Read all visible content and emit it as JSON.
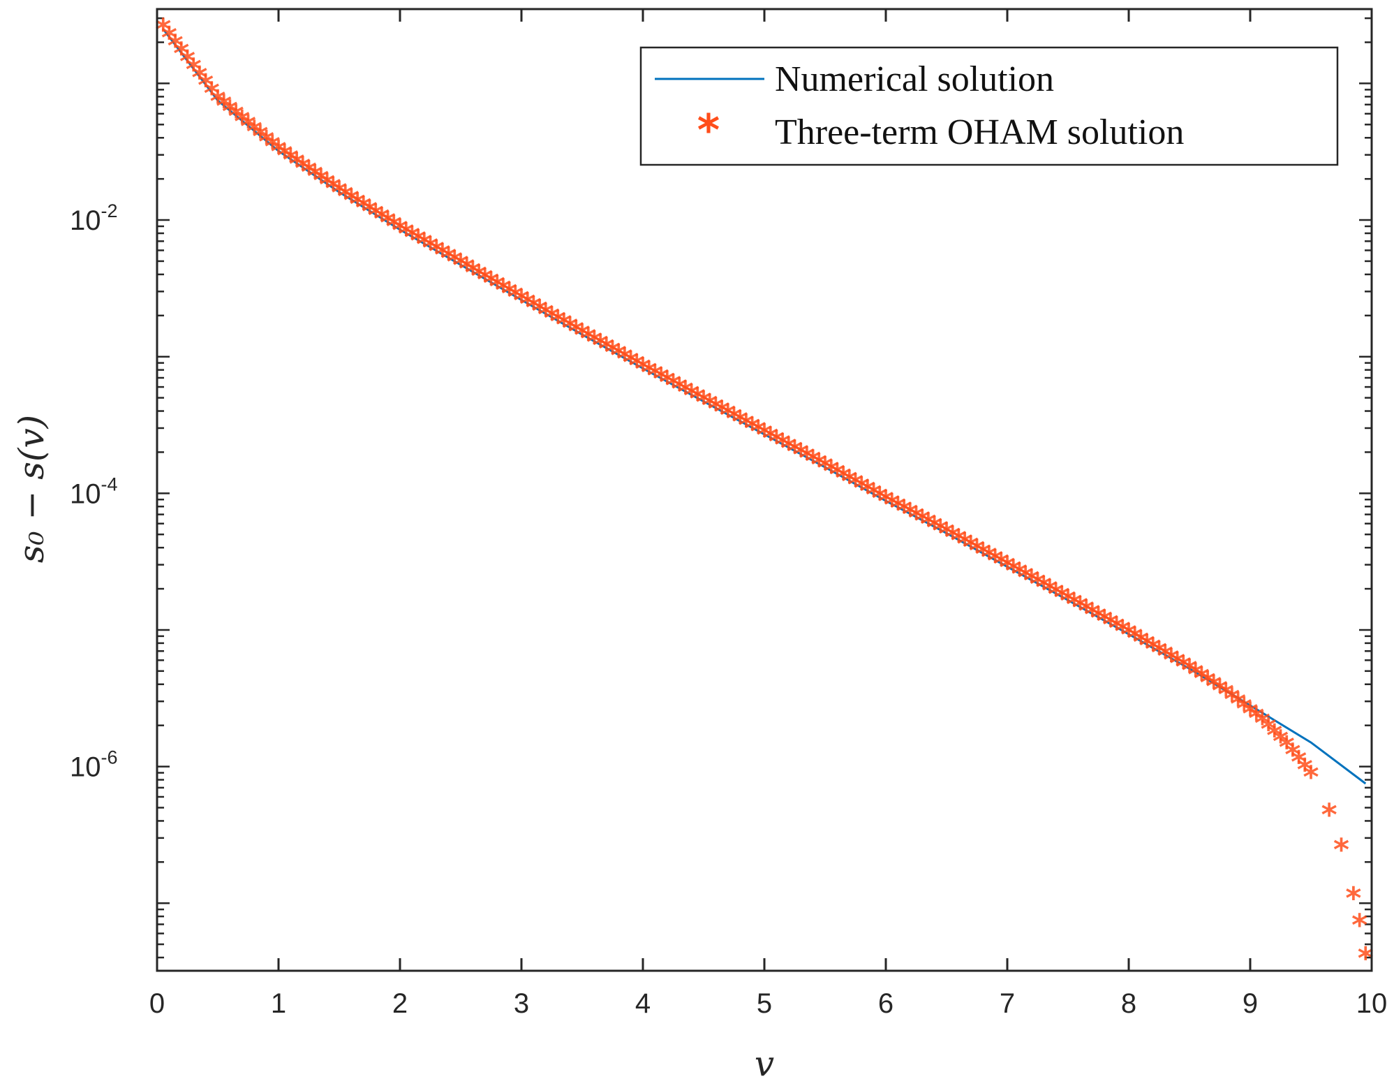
{
  "chart_data": {
    "type": "line",
    "xlabel": "v",
    "ylabel": "s₀ − s(v)",
    "xlim": [
      0,
      10
    ],
    "ylim": [
      3.2e-08,
      0.35
    ],
    "yscale": "log",
    "grid": false,
    "legend_position": "top-right",
    "x_ticks": [
      "0",
      "1",
      "2",
      "3",
      "4",
      "5",
      "6",
      "7",
      "8",
      "9",
      "10"
    ],
    "y_ticks": [
      {
        "base": "10",
        "exp": "-2",
        "value": 0.01
      },
      {
        "base": "10",
        "exp": "-4",
        "value": 0.0001
      },
      {
        "base": "10",
        "exp": "-6",
        "value": 1e-06
      }
    ],
    "colors": {
      "numerical": "#0072BD",
      "oham": "#FF4D1A",
      "axis": "#262626"
    },
    "series": [
      {
        "name": "Numerical solution",
        "style": "line",
        "x": [
          0.05,
          0.5,
          1,
          1.5,
          2,
          2.5,
          3,
          3.5,
          4,
          4.5,
          5,
          5.5,
          6,
          6.5,
          7,
          7.5,
          8,
          8.5,
          9,
          9.5,
          9.95
        ],
        "y": [
          0.25,
          0.075,
          0.032,
          0.016,
          0.0085,
          0.0047,
          0.0026,
          0.00145,
          0.00082,
          0.00047,
          0.00027,
          0.000155,
          8.8e-05,
          5.1e-05,
          2.9e-05,
          1.65e-05,
          9.3e-06,
          5.2e-06,
          2.8e-06,
          1.5e-06,
          7.5e-07
        ]
      },
      {
        "name": "Three-term OHAM solution",
        "style": "markers",
        "marker": "asterisk",
        "x": [
          0.05,
          0.5,
          1,
          1.5,
          2,
          2.5,
          3,
          3.5,
          4,
          4.5,
          5,
          5.5,
          6,
          6.5,
          7,
          7.5,
          8,
          8.5,
          8.8,
          9.1,
          9.3,
          9.5,
          9.65,
          9.75,
          9.85,
          9.9,
          9.95
        ],
        "y": [
          0.25,
          0.075,
          0.032,
          0.016,
          0.0085,
          0.0047,
          0.0026,
          0.00145,
          0.00082,
          0.00047,
          0.00027,
          0.000155,
          8.8e-05,
          5.1e-05,
          2.9e-05,
          1.65e-05,
          9.3e-06,
          5.1e-06,
          3.4e-06,
          2.1e-06,
          1.4e-06,
          8.5e-07,
          4.5e-07,
          2.5e-07,
          1.1e-07,
          7e-08,
          4e-08
        ]
      }
    ]
  }
}
